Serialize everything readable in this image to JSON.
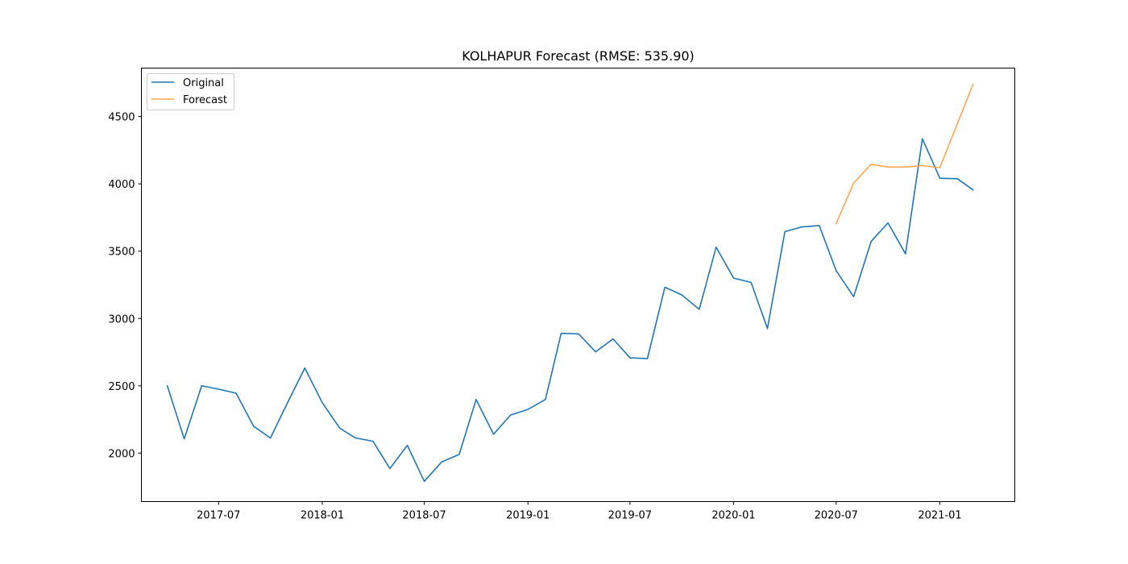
{
  "chart_data": {
    "type": "line",
    "title": "KOLHAPUR Forecast (RMSE: 535.90)",
    "xlabel": "",
    "ylabel": "",
    "x_range": [
      "2017-02-14",
      "2021-05-14"
    ],
    "ylim": [
      1640,
      4860
    ],
    "x_ticks": [
      "2017-07",
      "2018-01",
      "2018-07",
      "2019-01",
      "2019-07",
      "2020-01",
      "2020-07",
      "2021-01"
    ],
    "y_ticks": [
      2000,
      2500,
      3000,
      3500,
      4000,
      4500
    ],
    "grid": false,
    "legend_position": "top-left",
    "series": [
      {
        "name": "Original",
        "color": "#1f77b4",
        "points": [
          [
            "2017-04",
            2500
          ],
          [
            "2017-05",
            2105
          ],
          [
            "2017-06",
            2500
          ],
          [
            "2017-07",
            2475
          ],
          [
            "2017-08",
            2445
          ],
          [
            "2017-09",
            2200
          ],
          [
            "2017-10",
            2112
          ],
          [
            "2017-11",
            2380
          ],
          [
            "2017-12",
            2632
          ],
          [
            "2018-01",
            2375
          ],
          [
            "2018-02",
            2185
          ],
          [
            "2018-03",
            2112
          ],
          [
            "2018-04",
            2088
          ],
          [
            "2018-05",
            1885
          ],
          [
            "2018-06",
            2058
          ],
          [
            "2018-07",
            1790
          ],
          [
            "2018-08",
            1935
          ],
          [
            "2018-09",
            1990
          ],
          [
            "2018-10",
            2398
          ],
          [
            "2018-11",
            2140
          ],
          [
            "2018-12",
            2282
          ],
          [
            "2019-01",
            2325
          ],
          [
            "2019-02",
            2398
          ],
          [
            "2019-03",
            2890
          ],
          [
            "2019-04",
            2885
          ],
          [
            "2019-05",
            2752
          ],
          [
            "2019-06",
            2848
          ],
          [
            "2019-07",
            2708
          ],
          [
            "2019-08",
            2702
          ],
          [
            "2019-09",
            3232
          ],
          [
            "2019-10",
            3175
          ],
          [
            "2019-11",
            3068
          ],
          [
            "2019-12",
            3530
          ],
          [
            "2020-01",
            3300
          ],
          [
            "2020-02",
            3268
          ],
          [
            "2020-03",
            2925
          ],
          [
            "2020-04",
            3645
          ],
          [
            "2020-05",
            3680
          ],
          [
            "2020-06",
            3690
          ],
          [
            "2020-07",
            3355
          ],
          [
            "2020-08",
            3162
          ],
          [
            "2020-09",
            3572
          ],
          [
            "2020-10",
            3710
          ],
          [
            "2020-11",
            3480
          ],
          [
            "2020-12",
            4335
          ],
          [
            "2021-01",
            4042
          ],
          [
            "2021-02",
            4038
          ],
          [
            "2021-03",
            3955
          ]
        ]
      },
      {
        "name": "Forecast",
        "color": "#ffa54f",
        "points": [
          [
            "2020-07",
            3705
          ],
          [
            "2020-08",
            4005
          ],
          [
            "2020-09",
            4145
          ],
          [
            "2020-10",
            4125
          ],
          [
            "2020-11",
            4125
          ],
          [
            "2020-12",
            4135
          ],
          [
            "2021-01",
            4120
          ],
          [
            "2021-03",
            4740
          ]
        ]
      }
    ]
  }
}
